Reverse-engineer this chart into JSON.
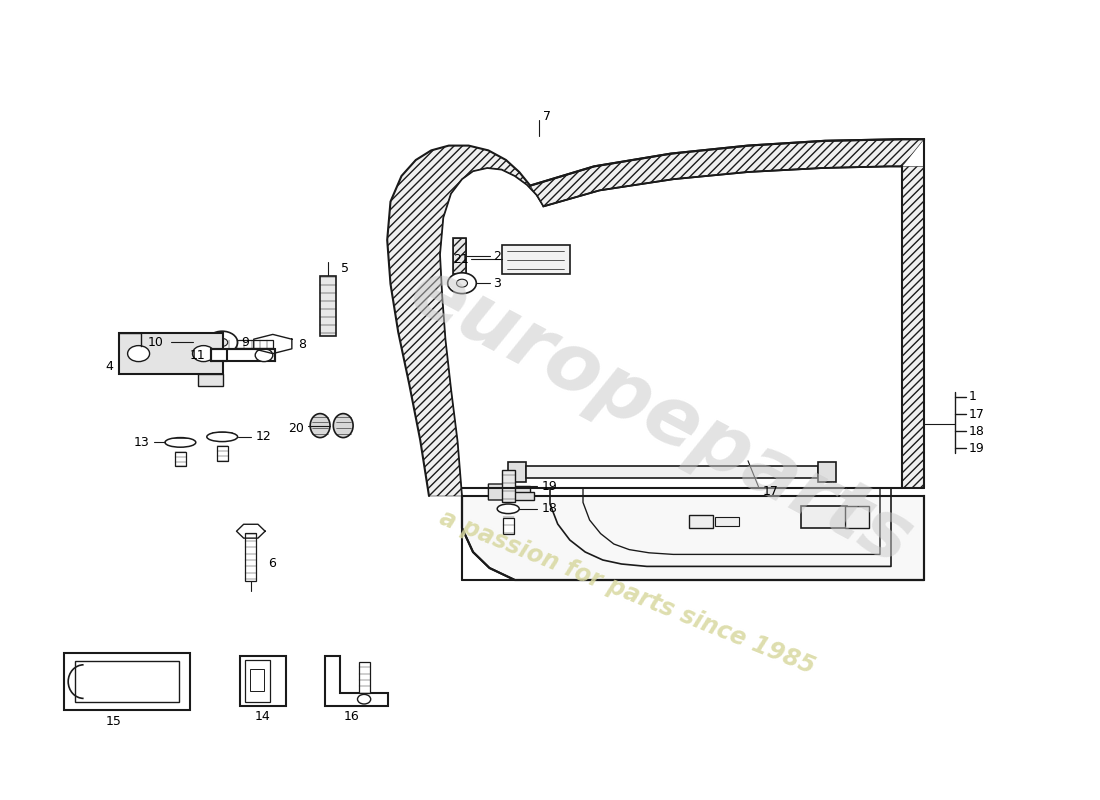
{
  "background_color": "#ffffff",
  "line_color": "#1a1a1a",
  "watermark1": "europeparts",
  "watermark2": "a passion for parts since 1985",
  "wm_color1": "#c8c8c8",
  "wm_color2": "#d8d8a0"
}
